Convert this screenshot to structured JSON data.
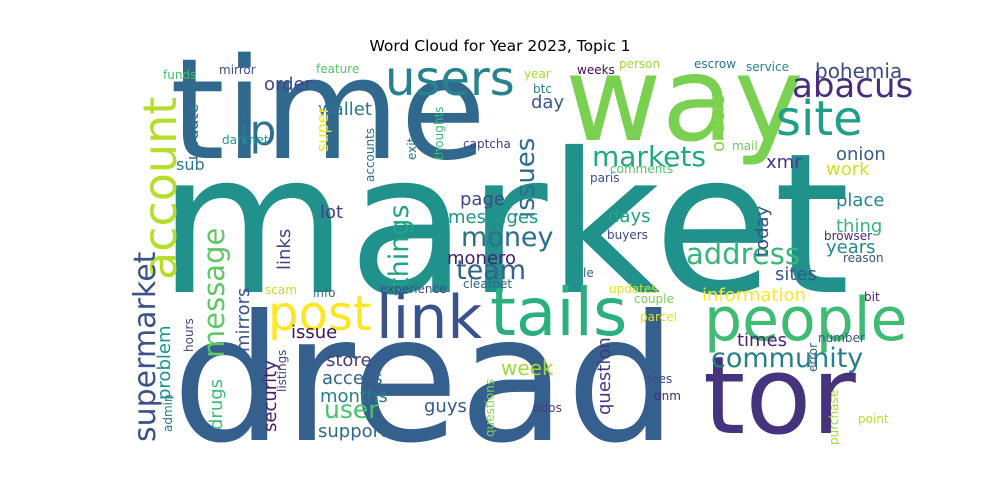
{
  "chart_data": {
    "type": "wordcloud",
    "title": "Word Cloud for Year 2023, Topic 1",
    "colormap": "viridis",
    "words": [
      {
        "text": "market",
        "weight": 1.0,
        "color": "#21918c"
      },
      {
        "text": "dread",
        "weight": 0.95,
        "color": "#355f8d"
      },
      {
        "text": "time",
        "weight": 0.72,
        "color": "#31688e"
      },
      {
        "text": "way",
        "weight": 0.66,
        "color": "#7ad151"
      },
      {
        "text": "tor",
        "weight": 0.58,
        "color": "#46337e"
      },
      {
        "text": "tails",
        "weight": 0.36,
        "color": "#2ab07f"
      },
      {
        "text": "people",
        "weight": 0.34,
        "color": "#3fbc73"
      },
      {
        "text": "link",
        "weight": 0.34,
        "color": "#3b528b"
      },
      {
        "text": "users",
        "weight": 0.28,
        "color": "#26828e"
      },
      {
        "text": "site",
        "weight": 0.26,
        "color": "#1f9e89"
      },
      {
        "text": "post",
        "weight": 0.26,
        "color": "#fde725"
      },
      {
        "text": "account",
        "weight": 0.25,
        "color": "#b5de2b"
      },
      {
        "text": "ip",
        "weight": 0.22,
        "color": "#2c728e"
      },
      {
        "text": "abacus",
        "weight": 0.19,
        "color": "#472d7b"
      },
      {
        "text": "supermarket",
        "weight": 0.17,
        "color": "#3b528b"
      },
      {
        "text": "message",
        "weight": 0.16,
        "color": "#5ec962"
      },
      {
        "text": "address",
        "weight": 0.16,
        "color": "#35b779"
      },
      {
        "text": "markets",
        "weight": 0.15,
        "color": "#22a884"
      },
      {
        "text": "community",
        "weight": 0.15,
        "color": "#277f8e"
      },
      {
        "text": "money",
        "weight": 0.14,
        "color": "#2d708e"
      },
      {
        "text": "team",
        "weight": 0.14,
        "color": "#33638d"
      },
      {
        "text": "things",
        "weight": 0.14,
        "color": "#20a486"
      },
      {
        "text": "issues",
        "weight": 0.14,
        "color": "#2f6c8e"
      },
      {
        "text": "user",
        "weight": 0.13,
        "color": "#4ac16d"
      },
      {
        "text": "bohemia",
        "weight": 0.12,
        "color": "#3e4989"
      },
      {
        "text": "week",
        "weight": 0.12,
        "color": "#a0da39"
      },
      {
        "text": "wallet",
        "weight": 0.11,
        "color": "#2a788e"
      },
      {
        "text": "order",
        "weight": 0.11,
        "color": "#404688"
      },
      {
        "text": "onion",
        "weight": 0.11,
        "color": "#365c8d"
      },
      {
        "text": "work",
        "weight": 0.11,
        "color": "#d2e21b"
      },
      {
        "text": "place",
        "weight": 0.11,
        "color": "#25858e"
      },
      {
        "text": "thing",
        "weight": 0.11,
        "color": "#35b779"
      },
      {
        "text": "years",
        "weight": 0.11,
        "color": "#24868e"
      },
      {
        "text": "sites",
        "weight": 0.1,
        "color": "#3a548c"
      },
      {
        "text": "xmr",
        "weight": 0.1,
        "color": "#443983"
      },
      {
        "text": "days",
        "weight": 0.1,
        "color": "#1fa187"
      },
      {
        "text": "page",
        "weight": 0.1,
        "color": "#3e4a89"
      },
      {
        "text": "messages",
        "weight": 0.1,
        "color": "#1f958b"
      },
      {
        "text": "monero",
        "weight": 0.1,
        "color": "#481f70"
      },
      {
        "text": "lot",
        "weight": 0.1,
        "color": "#424186"
      },
      {
        "text": "links",
        "weight": 0.1,
        "color": "#414487"
      },
      {
        "text": "times",
        "weight": 0.1,
        "color": "#482576"
      },
      {
        "text": "information",
        "weight": 0.1,
        "color": "#fde725"
      },
      {
        "text": "question",
        "weight": 0.1,
        "color": "#453882"
      },
      {
        "text": "guys",
        "weight": 0.1,
        "color": "#375a8c"
      },
      {
        "text": "drugs",
        "weight": 0.1,
        "color": "#3fbc73"
      },
      {
        "text": "problem",
        "weight": 0.1,
        "color": "#20928c"
      },
      {
        "text": "mirrors",
        "weight": 0.1,
        "color": "#39568c"
      },
      {
        "text": "security",
        "weight": 0.1,
        "color": "#481b6d"
      },
      {
        "text": "months",
        "weight": 0.1,
        "color": "#287d8e"
      },
      {
        "text": "access",
        "weight": 0.1,
        "color": "#32658e"
      },
      {
        "text": "store",
        "weight": 0.1,
        "color": "#423f85"
      },
      {
        "text": "issue",
        "weight": 0.09,
        "color": "#471164"
      },
      {
        "text": "support",
        "weight": 0.09,
        "color": "#31678e"
      },
      {
        "text": "today",
        "weight": 0.09,
        "color": "#3b528b"
      },
      {
        "text": "day",
        "weight": 0.09,
        "color": "#38588c"
      },
      {
        "text": "orders",
        "weight": 0.09,
        "color": "#8bd646"
      },
      {
        "text": "update",
        "weight": 0.09,
        "color": "#2e6e8e"
      },
      {
        "text": "sub",
        "weight": 0.09,
        "color": "#2a788e"
      },
      {
        "text": "super",
        "weight": 0.08,
        "color": "#f1e51d"
      },
      {
        "text": "mirror",
        "weight": 0.06,
        "color": "#3d4e8a"
      },
      {
        "text": "feature",
        "weight": 0.06,
        "color": "#52c569"
      },
      {
        "text": "funds",
        "weight": 0.06,
        "color": "#44bf70"
      },
      {
        "text": "darknet",
        "weight": 0.06,
        "color": "#1f988b"
      },
      {
        "text": "year",
        "weight": 0.06,
        "color": "#a5db36"
      },
      {
        "text": "btc",
        "weight": 0.06,
        "color": "#23898e"
      },
      {
        "text": "weeks",
        "weight": 0.06,
        "color": "#46075a"
      },
      {
        "text": "person",
        "weight": 0.06,
        "color": "#9bd93c"
      },
      {
        "text": "escrow",
        "weight": 0.06,
        "color": "#2c718e"
      },
      {
        "text": "service",
        "weight": 0.06,
        "color": "#25848e"
      },
      {
        "text": "mail",
        "weight": 0.06,
        "color": "#6ccd5a"
      },
      {
        "text": "comments",
        "weight": 0.06,
        "color": "#50c46a"
      },
      {
        "text": "paris",
        "weight": 0.06,
        "color": "#3b518b"
      },
      {
        "text": "captcha",
        "weight": 0.06,
        "color": "#404588"
      },
      {
        "text": "thoughts",
        "weight": 0.06,
        "color": "#3fbc73"
      },
      {
        "text": "exit",
        "weight": 0.06,
        "color": "#29798e"
      },
      {
        "text": "accounts",
        "weight": 0.06,
        "color": "#2d708e"
      },
      {
        "text": "buyers",
        "weight": 0.06,
        "color": "#3f4788"
      },
      {
        "text": "browser",
        "weight": 0.06,
        "color": "#472c7a"
      },
      {
        "text": "reason",
        "weight": 0.06,
        "color": "#3d4d8a"
      },
      {
        "text": "le",
        "weight": 0.06,
        "color": "#31668e"
      },
      {
        "text": "hours",
        "weight": 0.06,
        "color": "#404588"
      },
      {
        "text": "scam",
        "weight": 0.06,
        "color": "#c2df23"
      },
      {
        "text": "experience",
        "weight": 0.06,
        "color": "#3f4889"
      },
      {
        "text": "clearnet",
        "weight": 0.06,
        "color": "#33638d"
      },
      {
        "text": "updates",
        "weight": 0.06,
        "color": "#d8e219"
      },
      {
        "text": "couple",
        "weight": 0.06,
        "color": "#75d054"
      },
      {
        "text": "parcel",
        "weight": 0.06,
        "color": "#e2e418"
      },
      {
        "text": "bit",
        "weight": 0.06,
        "color": "#481a6c"
      },
      {
        "text": "number",
        "weight": 0.06,
        "color": "#3a548c"
      },
      {
        "text": "error",
        "weight": 0.06,
        "color": "#355f8d"
      },
      {
        "text": "info",
        "weight": 0.06,
        "color": "#2c728e"
      },
      {
        "text": "listings",
        "weight": 0.06,
        "color": "#424086"
      },
      {
        "text": "admin",
        "weight": 0.06,
        "color": "#297a8e"
      },
      {
        "text": "questions",
        "weight": 0.06,
        "color": "#86d549"
      },
      {
        "text": "ddos",
        "weight": 0.06,
        "color": "#433e85"
      },
      {
        "text": "fees",
        "weight": 0.06,
        "color": "#3e4989"
      },
      {
        "text": "dnm",
        "weight": 0.06,
        "color": "#482878"
      },
      {
        "text": "purchase",
        "weight": 0.06,
        "color": "#a2da37"
      },
      {
        "text": "point",
        "weight": 0.06,
        "color": "#b8de29"
      }
    ]
  }
}
